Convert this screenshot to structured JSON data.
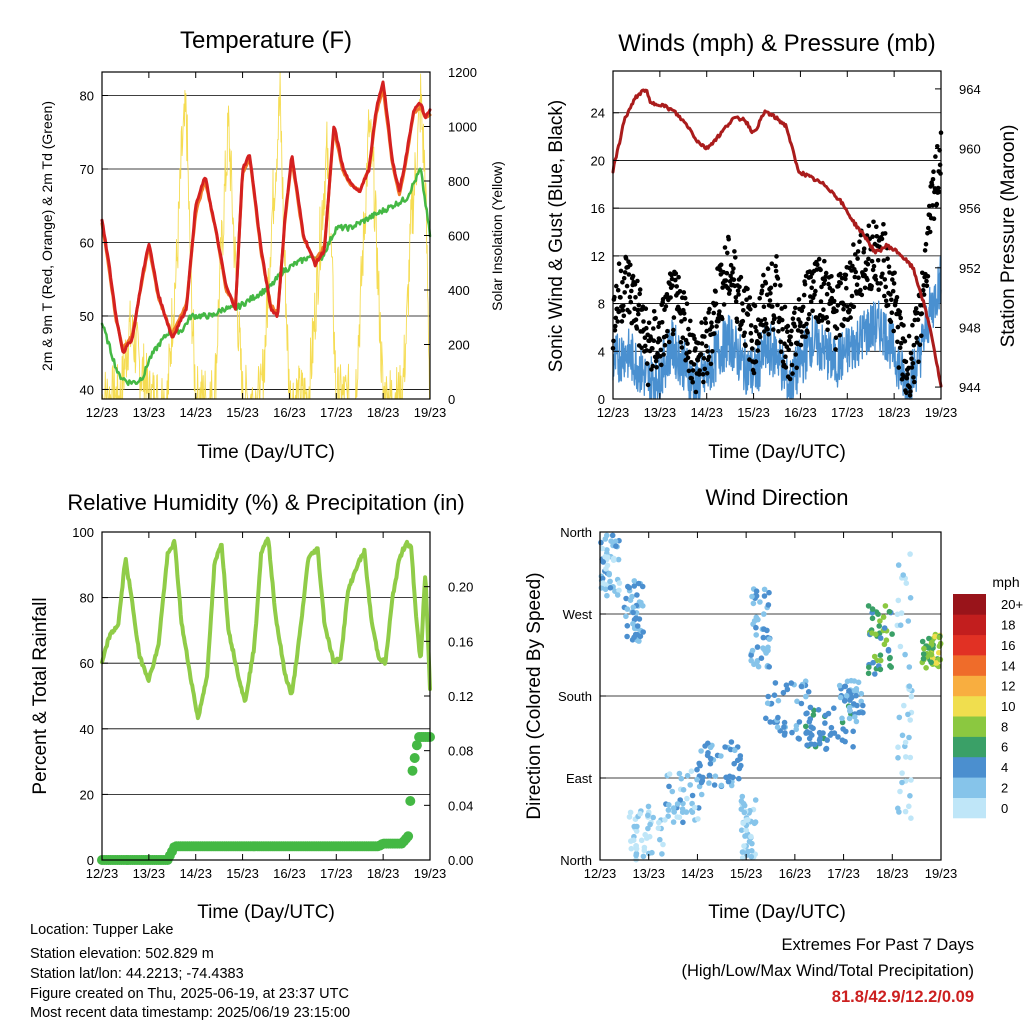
{
  "colors": {
    "temp2m": "#d42020",
    "temp9m": "#f07828",
    "dewpoint": "#44b844",
    "solar": "#f4d840",
    "wind": "#4a90d0",
    "gust": "#000000",
    "pressure": "#aa1c1c",
    "rh": "#90cc48",
    "rain": "#44b844",
    "extremes": "#cc2020"
  },
  "chart_data": [
    {
      "type": "line",
      "title": "Temperature (F)",
      "xlabel": "Time (Day/UTC)",
      "ylabel": "2m & 9m T (Red, Orange) & 2m Td (Green)",
      "y2label": "Solar Insolation (Yellow)",
      "x_ticks": [
        "12/23",
        "13/23",
        "14/23",
        "15/23",
        "16/23",
        "17/23",
        "18/23",
        "19/23"
      ],
      "xlim": [
        0,
        7
      ],
      "ylim": [
        38.7,
        83.2
      ],
      "y_ticks": [
        40,
        50,
        60,
        70,
        80
      ],
      "y2lim": [
        0,
        1200
      ],
      "y2_ticks": [
        0,
        200,
        400,
        600,
        800,
        1000,
        1200
      ],
      "grid": "y",
      "series": [
        {
          "name": "2m T",
          "axis": "left",
          "x": [
            0,
            0.15,
            0.3,
            0.45,
            0.65,
            0.85,
            1.0,
            1.2,
            1.5,
            1.8,
            2.0,
            2.2,
            2.45,
            2.65,
            2.85,
            3.0,
            3.15,
            3.4,
            3.6,
            3.75,
            3.9,
            4.05,
            4.3,
            4.55,
            4.75,
            4.95,
            5.15,
            5.3,
            5.5,
            5.7,
            5.85,
            6.0,
            6.2,
            6.35,
            6.5,
            6.65,
            6.8,
            6.9,
            7.0
          ],
          "y": [
            63,
            57,
            50,
            45,
            47,
            55,
            60,
            53,
            47,
            51,
            65,
            69,
            61,
            54,
            51,
            70,
            72,
            59,
            51,
            50,
            63,
            72,
            61,
            57,
            59,
            76,
            70,
            68,
            67,
            70,
            78,
            82,
            71,
            67,
            72,
            78,
            79,
            77,
            78
          ]
        },
        {
          "name": "9m T",
          "axis": "left",
          "x": [
            0,
            0.15,
            0.3,
            0.45,
            0.65,
            0.85,
            1.0,
            1.2,
            1.5,
            1.8,
            2.0,
            2.2,
            2.45,
            2.65,
            2.85,
            3.0,
            3.15,
            3.4,
            3.6,
            3.75,
            3.9,
            4.05,
            4.3,
            4.55,
            4.75,
            4.95,
            5.15,
            5.3,
            5.5,
            5.7,
            5.85,
            6.0,
            6.2,
            6.35,
            6.5,
            6.65,
            6.8,
            6.9,
            7.0
          ],
          "y": [
            62.5,
            56.5,
            49.5,
            45.5,
            47.5,
            54.5,
            59.5,
            52.5,
            47.5,
            51.5,
            64,
            68.5,
            61,
            53.5,
            51.5,
            69.5,
            71.5,
            58.5,
            51.5,
            50.5,
            62.5,
            71.5,
            60.5,
            57.5,
            59.5,
            75.5,
            69.5,
            68,
            67,
            70,
            77.5,
            81,
            70.5,
            66.5,
            71.5,
            77.5,
            78.5,
            77,
            77.5
          ]
        },
        {
          "name": "2m Td",
          "axis": "left",
          "x": [
            0,
            0.15,
            0.35,
            0.55,
            0.75,
            0.9,
            1.0,
            1.2,
            1.45,
            1.7,
            1.9,
            2.1,
            2.35,
            2.6,
            2.85,
            3.1,
            3.35,
            3.6,
            3.85,
            4.1,
            4.4,
            4.7,
            5.0,
            5.3,
            5.6,
            5.9,
            6.2,
            6.5,
            6.8,
            7.0
          ],
          "y": [
            49,
            46,
            42,
            41,
            41,
            42,
            44,
            46,
            48,
            48,
            50,
            50,
            50,
            51,
            51,
            52,
            53,
            54,
            56,
            57,
            58,
            58,
            62,
            62,
            63,
            64,
            65,
            66,
            70,
            61
          ]
        },
        {
          "name": "Solar",
          "axis": "right",
          "x": [
            0,
            0.4,
            0.5,
            0.58,
            0.7,
            0.8,
            0.9,
            1.0,
            1.4,
            1.5,
            1.6,
            1.7,
            1.8,
            1.9,
            2.0,
            2.4,
            2.5,
            2.6,
            2.7,
            2.8,
            2.9,
            3.0,
            3.4,
            3.5,
            3.6,
            3.7,
            3.8,
            3.9,
            4.0,
            4.4,
            4.5,
            4.6,
            4.7,
            4.8,
            4.9,
            5.0,
            5.4,
            5.5,
            5.6,
            5.7,
            5.8,
            5.9,
            6.0,
            6.4,
            6.5,
            6.6,
            6.7,
            6.8,
            6.9,
            7.0
          ],
          "y": [
            0,
            0,
            150,
            250,
            200,
            120,
            80,
            0,
            0,
            300,
            500,
            900,
            1050,
            400,
            0,
            0,
            380,
            700,
            1000,
            650,
            300,
            0,
            0,
            250,
            600,
            850,
            1100,
            500,
            0,
            0,
            200,
            450,
            700,
            900,
            500,
            0,
            0,
            300,
            650,
            1000,
            800,
            400,
            0,
            0,
            250,
            650,
            850,
            1100,
            800,
            0
          ]
        }
      ]
    },
    {
      "type": "line",
      "title": "Winds (mph) & Pressure (mb)",
      "xlabel": "Time (Day/UTC)",
      "ylabel": "Sonic Wind & Gust (Blue, Black)",
      "y2label": "Station Pressure (Maroon)",
      "x_ticks": [
        "12/23",
        "13/23",
        "14/23",
        "15/23",
        "16/23",
        "17/23",
        "18/23",
        "19/23"
      ],
      "xlim": [
        0,
        7
      ],
      "ylim": [
        0,
        27.5
      ],
      "y_ticks": [
        0,
        4,
        8,
        12,
        16,
        20,
        24
      ],
      "y2lim": [
        943.2,
        965.2
      ],
      "y2_ticks": [
        944,
        948,
        952,
        956,
        960,
        964
      ],
      "grid": "y",
      "series": [
        {
          "name": "Sonic Wind",
          "axis": "left",
          "x": [
            0,
            0.25,
            0.5,
            0.75,
            1.0,
            1.25,
            1.5,
            1.75,
            2.0,
            2.25,
            2.5,
            2.75,
            3.0,
            3.25,
            3.5,
            3.75,
            4.0,
            4.25,
            4.5,
            4.75,
            5.0,
            5.25,
            5.5,
            5.75,
            6.0,
            6.25,
            6.5,
            6.75,
            7.0
          ],
          "y": [
            3,
            4,
            3,
            1.5,
            2,
            4.5,
            3,
            1,
            2,
            4,
            5,
            3,
            2,
            4,
            4,
            1,
            3,
            5,
            4,
            3,
            4,
            5,
            6,
            6,
            4,
            1,
            3,
            7,
            10
          ]
        },
        {
          "name": "Gust",
          "axis": "left",
          "x": [
            0,
            0.25,
            0.5,
            0.75,
            1.0,
            1.25,
            1.5,
            1.75,
            2.0,
            2.25,
            2.5,
            2.75,
            3.0,
            3.25,
            3.5,
            3.75,
            4.0,
            4.25,
            4.5,
            4.75,
            5.0,
            5.25,
            5.5,
            5.75,
            6.0,
            6.25,
            6.5,
            6.75,
            7.0
          ],
          "y": [
            7,
            10,
            8,
            4,
            5,
            8,
            7,
            3,
            4,
            9,
            11,
            8,
            5,
            8,
            9,
            3,
            6,
            10,
            9,
            7,
            9,
            11,
            12,
            12,
            8,
            2,
            5,
            14,
            21
          ]
        },
        {
          "name": "Pressure",
          "axis": "right",
          "x": [
            0,
            0.25,
            0.5,
            0.7,
            0.8,
            1.0,
            1.3,
            1.6,
            1.8,
            2.0,
            2.3,
            2.55,
            2.8,
            3.0,
            3.25,
            3.5,
            3.7,
            3.95,
            4.25,
            4.55,
            4.85,
            5.15,
            5.4,
            5.6,
            5.85,
            6.1,
            6.4,
            6.6,
            6.8,
            7.0
          ],
          "y": [
            958.5,
            962,
            963.5,
            964,
            963,
            963,
            962.5,
            961.5,
            960.5,
            960,
            961,
            962,
            962,
            961,
            962.5,
            962,
            961.5,
            958.5,
            958,
            957.5,
            956.5,
            955,
            954,
            953,
            953.5,
            953,
            952,
            950,
            947.5,
            944
          ]
        }
      ]
    },
    {
      "type": "line",
      "title": "Relative Humidity (%) & Precipitation (in)",
      "xlabel": "Time (Day/UTC)",
      "ylabel": "Percent & Total Rainfall",
      "x_ticks": [
        "12/23",
        "13/23",
        "14/23",
        "15/23",
        "16/23",
        "17/23",
        "18/23",
        "19/23"
      ],
      "xlim": [
        0,
        7
      ],
      "ylim": [
        0,
        100
      ],
      "y_ticks": [
        0,
        20,
        40,
        60,
        80,
        100
      ],
      "y2lim": [
        0,
        0.24
      ],
      "y2_ticks": [
        0.0,
        0.04,
        0.08,
        0.12,
        0.16,
        0.2
      ],
      "grid": "y",
      "series": [
        {
          "name": "RH",
          "axis": "left",
          "x": [
            0,
            0.15,
            0.35,
            0.5,
            0.65,
            0.8,
            1.0,
            1.2,
            1.4,
            1.55,
            1.7,
            1.9,
            2.05,
            2.25,
            2.4,
            2.55,
            2.7,
            2.9,
            3.05,
            3.25,
            3.4,
            3.55,
            3.7,
            3.9,
            4.05,
            4.25,
            4.4,
            4.6,
            4.75,
            4.95,
            5.1,
            5.25,
            5.45,
            5.6,
            5.75,
            5.9,
            6.05,
            6.2,
            6.35,
            6.5,
            6.6,
            6.7,
            6.8,
            6.9,
            7.0
          ],
          "y": [
            60,
            68,
            72,
            92,
            78,
            62,
            55,
            65,
            93,
            97,
            72,
            55,
            43,
            57,
            90,
            97,
            70,
            57,
            48,
            65,
            94,
            98,
            75,
            57,
            50,
            72,
            92,
            95,
            72,
            60,
            62,
            82,
            90,
            94,
            73,
            62,
            60,
            80,
            92,
            97,
            95,
            75,
            60,
            88,
            52
          ]
        },
        {
          "name": "Rainfall",
          "axis": "right",
          "x": [
            0,
            1.4,
            1.55,
            5.9,
            6.0,
            6.4,
            6.55,
            6.6,
            6.75,
            7.0
          ],
          "y": [
            0,
            0,
            0.01,
            0.01,
            0.012,
            0.012,
            0.018,
            0.06,
            0.09,
            0.09
          ]
        }
      ]
    },
    {
      "type": "scatter",
      "title": "Wind Direction",
      "xlabel": "Time (Day/UTC)",
      "ylabel": "Direction (Colored By Speed)",
      "x_ticks": [
        "12/23",
        "13/23",
        "14/23",
        "15/23",
        "16/23",
        "17/23",
        "18/23",
        "19/23"
      ],
      "xlim": [
        0,
        7
      ],
      "y_ticks": [
        "North",
        "East",
        "South",
        "West",
        "North"
      ],
      "y_tick_values": [
        0,
        90,
        180,
        270,
        360
      ],
      "ylim": [
        0,
        360
      ],
      "grid": "y",
      "colorbar": {
        "title": "mph",
        "labels": [
          "0",
          "2",
          "4",
          "6",
          "8",
          "10",
          "12",
          "14",
          "16",
          "18",
          "20+"
        ],
        "colors": [
          "#bfe6f8",
          "#86c4ea",
          "#4b8fcf",
          "#3aa067",
          "#8bc840",
          "#f0de4e",
          "#f8ae40",
          "#ef6c2a",
          "#e13124",
          "#c21e1e",
          "#99141a"
        ]
      },
      "clusters": [
        {
          "x": [
            0,
            0.4
          ],
          "y": [
            290,
            360
          ],
          "speed": [
            0,
            4
          ]
        },
        {
          "x": [
            0.5,
            0.9
          ],
          "y": [
            240,
            310
          ],
          "speed": [
            1,
            5
          ]
        },
        {
          "x": [
            0.6,
            1.3
          ],
          "y": [
            0,
            60
          ],
          "speed": [
            0,
            2
          ]
        },
        {
          "x": [
            1.3,
            2.1
          ],
          "y": [
            40,
            100
          ],
          "speed": [
            0,
            4
          ]
        },
        {
          "x": [
            2.0,
            2.9
          ],
          "y": [
            80,
            130
          ],
          "speed": [
            2,
            5
          ]
        },
        {
          "x": [
            2.9,
            3.2
          ],
          "y": [
            0,
            70
          ],
          "speed": [
            0,
            3
          ]
        },
        {
          "x": [
            3.1,
            3.5
          ],
          "y": [
            210,
            300
          ],
          "speed": [
            1,
            4
          ]
        },
        {
          "x": [
            3.4,
            4.4
          ],
          "y": [
            130,
            200
          ],
          "speed": [
            2,
            5
          ]
        },
        {
          "x": [
            4.2,
            5.2
          ],
          "y": [
            120,
            170
          ],
          "speed": [
            3,
            6
          ]
        },
        {
          "x": [
            4.9,
            5.4
          ],
          "y": [
            150,
            200
          ],
          "speed": [
            2,
            5
          ]
        },
        {
          "x": [
            5.5,
            6.0
          ],
          "y": [
            200,
            280
          ],
          "speed": [
            4,
            8
          ]
        },
        {
          "x": [
            6.1,
            6.4
          ],
          "y": [
            40,
            340
          ],
          "speed": [
            0,
            2
          ]
        },
        {
          "x": [
            6.6,
            7.0
          ],
          "y": [
            210,
            250
          ],
          "speed": [
            6,
            10
          ]
        }
      ]
    }
  ],
  "info": {
    "location": "Location: Tupper Lake",
    "elevation": "Station elevation: 502.829 m",
    "latlon": "Station lat/lon: 44.2213; -74.4383",
    "created": "Figure created on Thu, 2025-06-19, at 23:37 UTC",
    "recent": "Most recent data timestamp: 2025/06/19 23:15:00"
  },
  "extremes": {
    "title": "Extremes For Past 7 Days",
    "subtitle": "(High/Low/Max Wind/Total Precipitation)",
    "values": "81.8/42.9/12.2/0.09"
  }
}
